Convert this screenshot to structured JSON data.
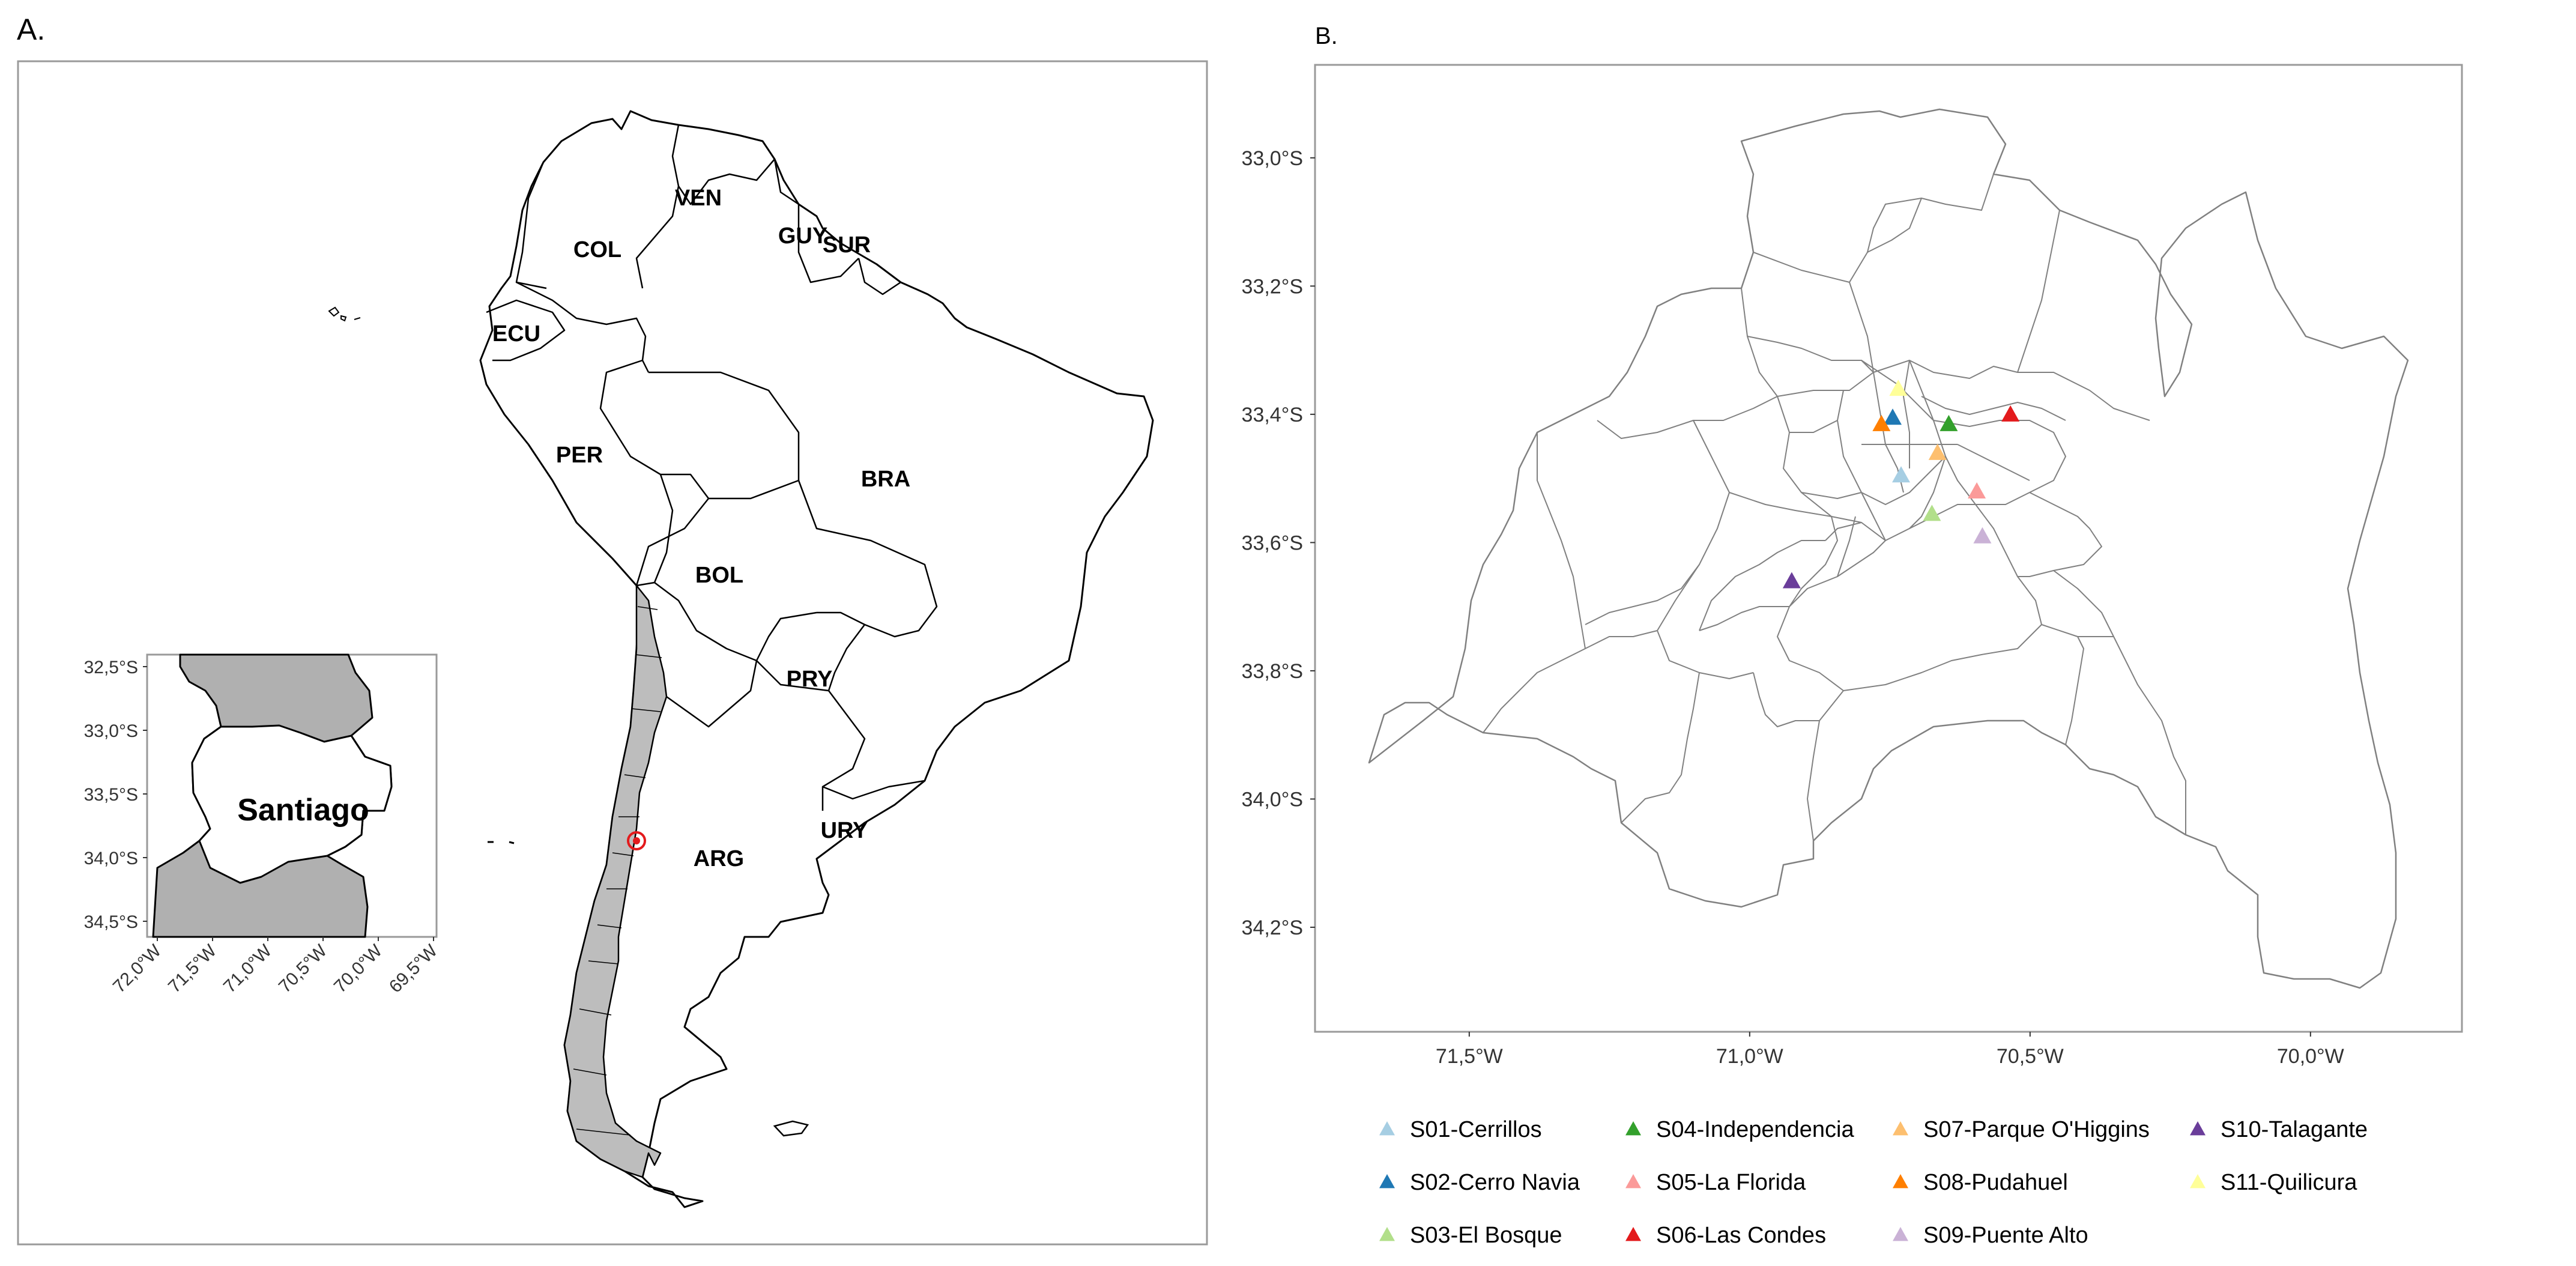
{
  "panelA": {
    "label": "A.",
    "countries": [
      {
        "code": "COL",
        "name": "colombia"
      },
      {
        "code": "VEN",
        "name": "venezuela"
      },
      {
        "code": "GUY",
        "name": "guyana"
      },
      {
        "code": "SUR",
        "name": "suriname"
      },
      {
        "code": "ECU",
        "name": "ecuador"
      },
      {
        "code": "PER",
        "name": "peru"
      },
      {
        "code": "BRA",
        "name": "brazil"
      },
      {
        "code": "BOL",
        "name": "bolivia"
      },
      {
        "code": "PRY",
        "name": "paraguay"
      },
      {
        "code": "URY",
        "name": "uruguay"
      },
      {
        "code": "ARG",
        "name": "argentina"
      }
    ],
    "inset": {
      "title": "Santiago",
      "y_ticks": [
        "32,5°S",
        "33,0°S",
        "33,5°S",
        "34,0°S",
        "34,5°S"
      ],
      "x_ticks": [
        "72,0°W",
        "71,5°W",
        "71,0°W",
        "70,5°W",
        "70,0°W",
        "69,5°W"
      ]
    }
  },
  "panelB": {
    "label": "B.",
    "y_ticks": [
      "33,0°S",
      "33,2°S",
      "33,4°S",
      "33,6°S",
      "33,8°S",
      "34,0°S",
      "34,2°S"
    ],
    "x_ticks": [
      "71,5°W",
      "71,0°W",
      "70,5°W",
      "70,0°W"
    ],
    "stations": [
      {
        "id": "S01",
        "label": "S01-Cerrillos",
        "color": "#a6cee3",
        "lon": -70.73,
        "lat": -33.495
      },
      {
        "id": "S02",
        "label": "S02-Cerro Navia",
        "color": "#1f78b4",
        "lon": -70.745,
        "lat": -33.405
      },
      {
        "id": "S03",
        "label": "S03-El Bosque",
        "color": "#b2df8a",
        "lon": -70.675,
        "lat": -33.555
      },
      {
        "id": "S04",
        "label": "S04-Independencia",
        "color": "#33a02c",
        "lon": -70.645,
        "lat": -33.415
      },
      {
        "id": "S05",
        "label": "S05-La Florida",
        "color": "#fb9a99",
        "lon": -70.595,
        "lat": -33.52
      },
      {
        "id": "S06",
        "label": "S06-Las Condes",
        "color": "#e31a1c",
        "lon": -70.535,
        "lat": -33.4
      },
      {
        "id": "S07",
        "label": "S07-Parque O'Higgins",
        "color": "#fdbf6f",
        "lon": -70.665,
        "lat": -33.46
      },
      {
        "id": "S08",
        "label": "S08-Pudahuel",
        "color": "#ff7f00",
        "lon": -70.765,
        "lat": -33.415
      },
      {
        "id": "S09",
        "label": "S09-Puente Alto",
        "color": "#cab2d6",
        "lon": -70.585,
        "lat": -33.59
      },
      {
        "id": "S10",
        "label": "S10-Talagante",
        "color": "#6a3d9a",
        "lon": -70.925,
        "lat": -33.66
      },
      {
        "id": "S11",
        "label": "S11-Quilicura",
        "color": "#ffff99",
        "lon": -70.735,
        "lat": -33.36
      }
    ],
    "legend_order": [
      "S01",
      "S04",
      "S07",
      "S10",
      "S02",
      "S05",
      "S08",
      "S11",
      "S03",
      "S06",
      "S09"
    ]
  }
}
